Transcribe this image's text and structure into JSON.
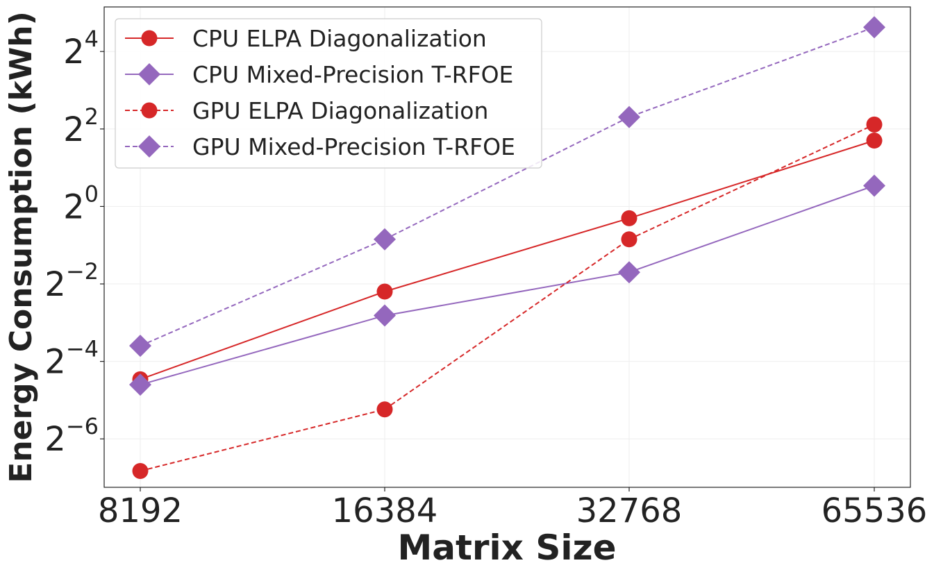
{
  "chart_data": {
    "type": "line",
    "title": "",
    "xlabel": "Matrix Size",
    "ylabel": "Energy Consumption (kWh)",
    "x_scale": "log2",
    "y_scale": "log2",
    "categories": [
      "8192",
      "16384",
      "32768",
      "65536"
    ],
    "x": [
      8192,
      16384,
      32768,
      65536
    ],
    "yticks": [
      {
        "base": "2",
        "exp": "−6",
        "value": 0.015625
      },
      {
        "base": "2",
        "exp": "−4",
        "value": 0.0625
      },
      {
        "base": "2",
        "exp": "−2",
        "value": 0.25
      },
      {
        "base": "2",
        "exp": "0",
        "value": 1
      },
      {
        "base": "2",
        "exp": "2",
        "value": 4
      },
      {
        "base": "2",
        "exp": "4",
        "value": 16
      }
    ],
    "ylim_log2": [
      -7.25,
      5.15
    ],
    "grid": true,
    "legend_position": "top-left",
    "series": [
      {
        "name": "CPU ELPA Diagonalization",
        "color": "#d62728",
        "marker": "circle",
        "line": "solid",
        "values": [
          0.0454,
          0.218,
          0.81,
          3.25
        ]
      },
      {
        "name": "CPU Mixed-Precision T-RFOE",
        "color": "#9467bd",
        "marker": "diamond",
        "line": "solid",
        "values": [
          0.0412,
          0.142,
          0.308,
          1.45
        ]
      },
      {
        "name": "GPU ELPA Diagonalization",
        "color": "#d62728",
        "marker": "circle",
        "line": "dashed",
        "values": [
          0.0088,
          0.0265,
          0.555,
          4.33
        ]
      },
      {
        "name": "GPU Mixed-Precision T-RFOE",
        "color": "#9467bd",
        "marker": "diamond",
        "line": "dashed",
        "values": [
          0.0826,
          0.555,
          4.95,
          24.7
        ]
      }
    ]
  }
}
